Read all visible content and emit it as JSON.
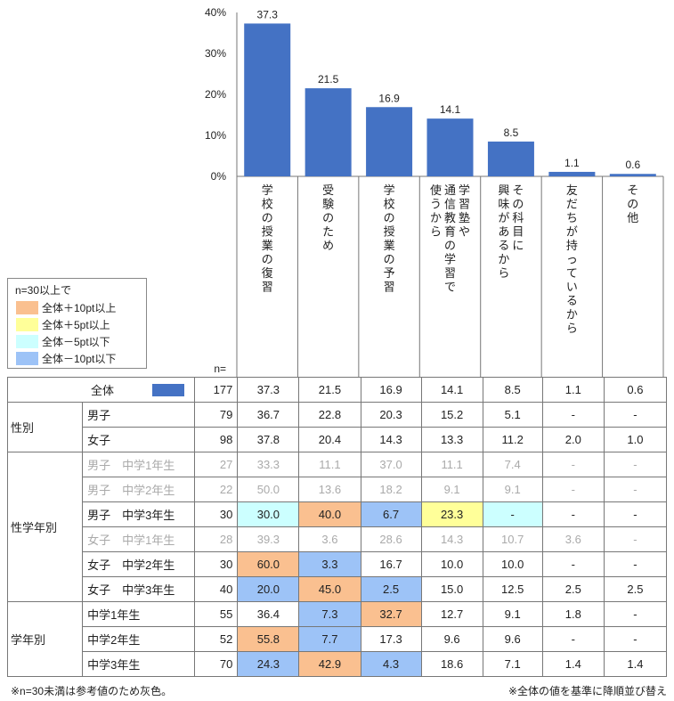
{
  "chart_data": {
    "type": "bar",
    "categories": [
      "学校の授業の復習",
      "受験のため",
      "学校の授業の予習",
      "学習塾や通信教育の学習で使うから",
      "その科目に興味があるから",
      "友だちが持っているから",
      "その他"
    ],
    "category_lines": [
      [
        "学校の授業の復習"
      ],
      [
        "受験のため"
      ],
      [
        "学校の授業の予習"
      ],
      [
        "学習塾や",
        "通信教育の学習で",
        "使うから"
      ],
      [
        "その科目に",
        "興味があるから"
      ],
      [
        "友だちが持っているから"
      ],
      [
        "その他"
      ]
    ],
    "values": [
      37.3,
      21.5,
      16.9,
      14.1,
      8.5,
      1.1,
      0.6
    ],
    "value_labels": [
      "37.3",
      "21.5",
      "16.9",
      "14.1",
      "8.5",
      "1.1",
      "0.6"
    ],
    "y_ticks": [
      "40%",
      "30%",
      "20%",
      "10%",
      "0%"
    ],
    "ylim": [
      0,
      40
    ],
    "bar_color": "#4472c4",
    "n_label": "n="
  },
  "legend": {
    "title": "n=30以上で",
    "items": [
      {
        "label": "全体＋10pt以上",
        "color": "#fac090"
      },
      {
        "label": "全体＋5pt以上",
        "color": "#ffff99"
      },
      {
        "label": "全体－5pt以下",
        "color": "#ccffff"
      },
      {
        "label": "全体－10pt以下",
        "color": "#9dc3f7"
      }
    ]
  },
  "colors": {
    "plus10": "#fac090",
    "plus5": "#ffff99",
    "minus5": "#ccffff",
    "minus10": "#9dc3f7"
  },
  "table": {
    "total": {
      "label": "全体",
      "n": "177",
      "cells": [
        {
          "v": "37.3"
        },
        {
          "v": "21.5"
        },
        {
          "v": "16.9"
        },
        {
          "v": "14.1"
        },
        {
          "v": "8.5"
        },
        {
          "v": "1.1"
        },
        {
          "v": "0.6"
        }
      ]
    },
    "groups": [
      {
        "name": "性別",
        "rows": [
          {
            "label": "男子",
            "n": "79",
            "gray": false,
            "cells": [
              {
                "v": "36.7"
              },
              {
                "v": "22.8"
              },
              {
                "v": "20.3"
              },
              {
                "v": "15.2"
              },
              {
                "v": "5.1"
              },
              {
                "v": "-"
              },
              {
                "v": "-"
              }
            ]
          },
          {
            "label": "女子",
            "n": "98",
            "gray": false,
            "cells": [
              {
                "v": "37.8"
              },
              {
                "v": "20.4"
              },
              {
                "v": "14.3"
              },
              {
                "v": "13.3"
              },
              {
                "v": "11.2"
              },
              {
                "v": "2.0"
              },
              {
                "v": "1.0"
              }
            ]
          }
        ]
      },
      {
        "name": "性学年別",
        "rows": [
          {
            "label": "男子　中学1年生",
            "n": "27",
            "gray": true,
            "cells": [
              {
                "v": "33.3"
              },
              {
                "v": "11.1"
              },
              {
                "v": "37.0"
              },
              {
                "v": "11.1"
              },
              {
                "v": "7.4"
              },
              {
                "v": "-"
              },
              {
                "v": "-"
              }
            ]
          },
          {
            "label": "男子　中学2年生",
            "n": "22",
            "gray": true,
            "cells": [
              {
                "v": "50.0"
              },
              {
                "v": "13.6"
              },
              {
                "v": "18.2"
              },
              {
                "v": "9.1"
              },
              {
                "v": "9.1"
              },
              {
                "v": "-"
              },
              {
                "v": "-"
              }
            ]
          },
          {
            "label": "男子　中学3年生",
            "n": "30",
            "gray": false,
            "cells": [
              {
                "v": "30.0",
                "h": "minus5"
              },
              {
                "v": "40.0",
                "h": "plus10"
              },
              {
                "v": "6.7",
                "h": "minus10"
              },
              {
                "v": "23.3",
                "h": "plus5"
              },
              {
                "v": "-",
                "h": "minus5"
              },
              {
                "v": "-"
              },
              {
                "v": "-"
              }
            ]
          },
          {
            "label": "女子　中学1年生",
            "n": "28",
            "gray": true,
            "cells": [
              {
                "v": "39.3"
              },
              {
                "v": "3.6"
              },
              {
                "v": "28.6"
              },
              {
                "v": "14.3"
              },
              {
                "v": "10.7"
              },
              {
                "v": "3.6"
              },
              {
                "v": "-"
              }
            ]
          },
          {
            "label": "女子　中学2年生",
            "n": "30",
            "gray": false,
            "cells": [
              {
                "v": "60.0",
                "h": "plus10"
              },
              {
                "v": "3.3",
                "h": "minus10"
              },
              {
                "v": "16.7"
              },
              {
                "v": "10.0"
              },
              {
                "v": "10.0"
              },
              {
                "v": "-"
              },
              {
                "v": "-"
              }
            ]
          },
          {
            "label": "女子　中学3年生",
            "n": "40",
            "gray": false,
            "cells": [
              {
                "v": "20.0",
                "h": "minus10"
              },
              {
                "v": "45.0",
                "h": "plus10"
              },
              {
                "v": "2.5",
                "h": "minus10"
              },
              {
                "v": "15.0"
              },
              {
                "v": "12.5"
              },
              {
                "v": "2.5"
              },
              {
                "v": "2.5"
              }
            ]
          }
        ]
      },
      {
        "name": "学年別",
        "rows": [
          {
            "label": "中学1年生",
            "n": "55",
            "gray": false,
            "cells": [
              {
                "v": "36.4"
              },
              {
                "v": "7.3",
                "h": "minus10"
              },
              {
                "v": "32.7",
                "h": "plus10"
              },
              {
                "v": "12.7"
              },
              {
                "v": "9.1"
              },
              {
                "v": "1.8"
              },
              {
                "v": "-"
              }
            ]
          },
          {
            "label": "中学2年生",
            "n": "52",
            "gray": false,
            "cells": [
              {
                "v": "55.8",
                "h": "plus10"
              },
              {
                "v": "7.7",
                "h": "minus10"
              },
              {
                "v": "17.3"
              },
              {
                "v": "9.6"
              },
              {
                "v": "9.6"
              },
              {
                "v": "-"
              },
              {
                "v": "-"
              }
            ]
          },
          {
            "label": "中学3年生",
            "n": "70",
            "gray": false,
            "cells": [
              {
                "v": "24.3",
                "h": "minus10"
              },
              {
                "v": "42.9",
                "h": "plus10"
              },
              {
                "v": "4.3",
                "h": "minus10"
              },
              {
                "v": "18.6"
              },
              {
                "v": "7.1"
              },
              {
                "v": "1.4"
              },
              {
                "v": "1.4"
              }
            ]
          }
        ]
      }
    ]
  },
  "notes": {
    "left": "※n=30未満は参考値のため灰色。",
    "right": "※全体の値を基準に降順並び替え"
  }
}
